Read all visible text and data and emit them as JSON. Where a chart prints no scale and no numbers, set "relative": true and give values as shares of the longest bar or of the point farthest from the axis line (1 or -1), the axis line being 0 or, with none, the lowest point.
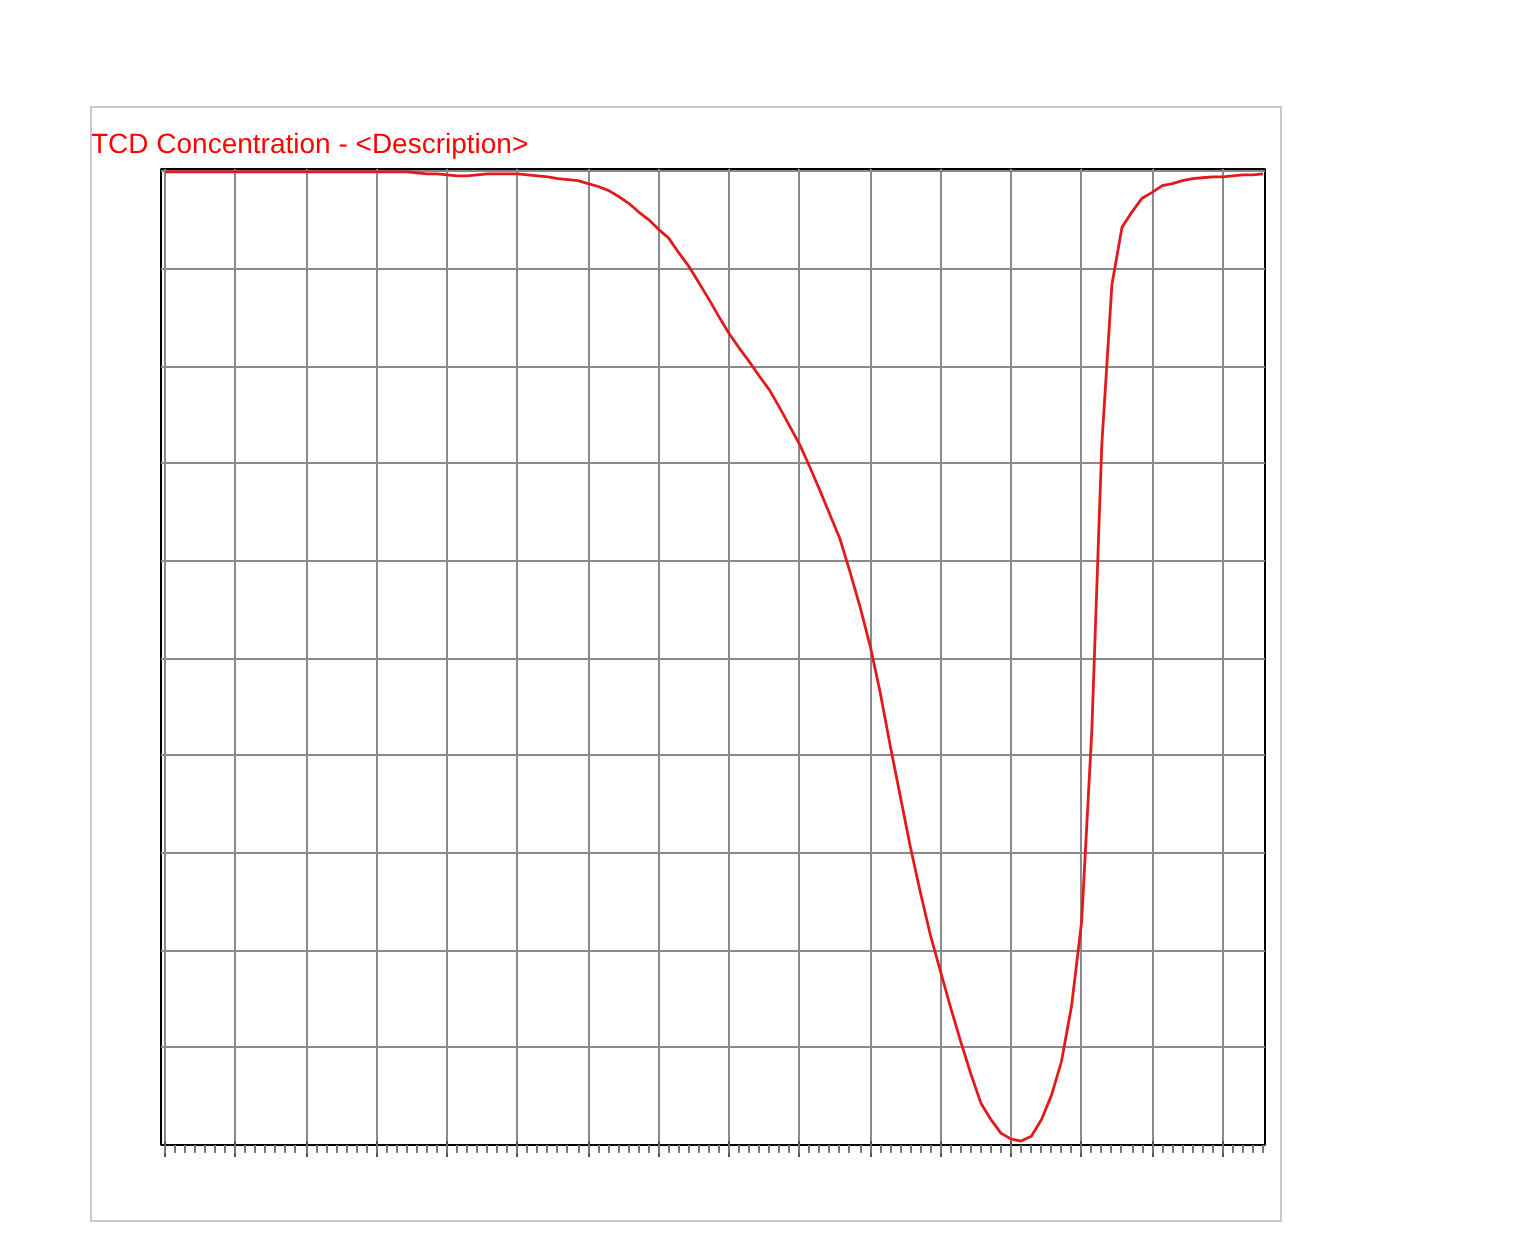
{
  "chart_data": {
    "type": "line",
    "title": "TCD Concentration - <Description>",
    "relative": true,
    "grid": true,
    "categories": [
      null,
      null,
      null,
      null,
      null,
      null,
      null,
      null,
      null,
      null,
      null,
      null,
      null,
      null,
      null,
      null,
      null,
      null,
      null,
      null,
      null,
      null,
      null,
      null,
      null,
      null,
      null,
      null,
      null,
      null,
      null,
      null,
      null,
      null,
      null,
      null,
      null,
      null,
      null,
      null,
      null,
      null,
      null,
      null,
      null,
      null,
      null,
      null,
      null,
      null,
      null,
      null,
      null,
      null,
      null,
      null,
      null,
      null,
      null,
      null,
      null,
      null,
      null,
      null,
      null,
      null,
      null,
      null,
      null,
      null,
      null,
      null,
      null,
      null,
      null,
      null,
      null,
      null,
      null,
      null,
      null,
      null,
      null,
      null,
      null,
      null,
      null,
      null,
      null,
      null,
      null,
      null,
      null,
      null,
      null,
      null,
      null,
      null,
      null,
      null,
      null,
      null,
      null,
      null,
      null,
      null,
      null,
      null,
      null,
      null
    ],
    "series": [
      {
        "color": "#e31a1c",
        "values": [
          1,
          1,
          1,
          1,
          1,
          1,
          1,
          1,
          1,
          1,
          1,
          1,
          1,
          1,
          1,
          1,
          1,
          1,
          1,
          1,
          1,
          1,
          1,
          1,
          1,
          0.999,
          0.998,
          0.998,
          0.997,
          0.996,
          0.996,
          0.997,
          0.998,
          0.998,
          0.998,
          0.998,
          0.997,
          0.996,
          0.995,
          0.993,
          0.992,
          0.991,
          0.988,
          0.985,
          0.981,
          0.975,
          0.968,
          0.959,
          0.951,
          0.941,
          0.932,
          0.917,
          0.903,
          0.886,
          0.869,
          0.851,
          0.834,
          0.819,
          0.805,
          0.79,
          0.776,
          0.758,
          0.739,
          0.72,
          0.697,
          0.673,
          0.648,
          0.623,
          0.589,
          0.553,
          0.513,
          0.465,
          0.41,
          0.358,
          0.306,
          0.259,
          0.215,
          0.178,
          0.141,
          0.106,
          0.073,
          0.043,
          0.026,
          0.012,
          0.006,
          0.004,
          0.009,
          0.026,
          0.051,
          0.086,
          0.143,
          0.23,
          0.424,
          0.72,
          0.884,
          0.943,
          0.959,
          0.973,
          0.979,
          0.986,
          0.988,
          0.991,
          0.993,
          0.994,
          0.995,
          0.995,
          0.996,
          0.997,
          0.997,
          0.998
        ]
      }
    ]
  }
}
